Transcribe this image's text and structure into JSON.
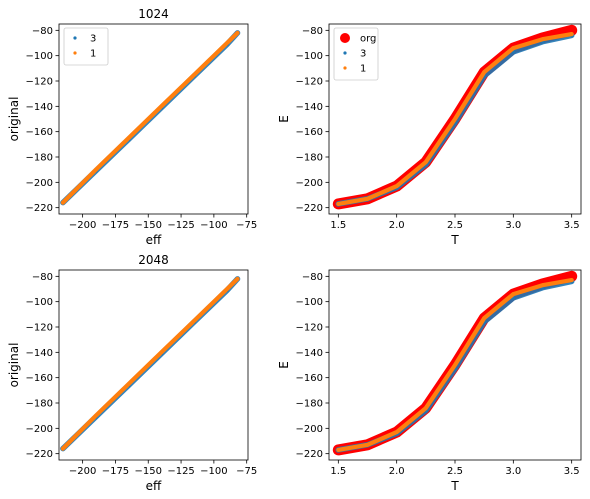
{
  "chart_data": [
    {
      "type": "scatter",
      "title": "1024",
      "xlabel": "eff",
      "ylabel": "original",
      "xlim": [
        -218,
        -74
      ],
      "ylim": [
        -225,
        -75
      ],
      "xticks": [
        -200,
        -175,
        -150,
        -125,
        -100,
        -75
      ],
      "xtick_labels": [
        "−200",
        "−175",
        "−150",
        "−125",
        "−100",
        "−75"
      ],
      "yticks": [
        -220,
        -200,
        -180,
        -160,
        -140,
        -120,
        -100,
        -80
      ],
      "ytick_labels": [
        "−220",
        "−200",
        "−180",
        "−160",
        "−140",
        "−120",
        "−100",
        "−80"
      ],
      "legend": "top-left",
      "series": [
        {
          "name": "3",
          "color": "#1f77b4",
          "x": [
            -215,
            -190,
            -165,
            -140,
            -115,
            -90,
            -82
          ],
          "y": [
            -216,
            -191,
            -166,
            -141,
            -116,
            -91,
            -82
          ]
        },
        {
          "name": "1",
          "color": "#ff7f0e",
          "x": [
            -215,
            -190,
            -165,
            -140,
            -115,
            -90,
            -82
          ],
          "y": [
            -216,
            -190,
            -165,
            -140,
            -115,
            -90,
            -82
          ]
        }
      ]
    },
    {
      "type": "scatter",
      "title": "",
      "xlabel": "T",
      "ylabel": "E",
      "xlim": [
        1.42,
        3.58
      ],
      "ylim": [
        -225,
        -75
      ],
      "xticks": [
        1.5,
        2.0,
        2.5,
        3.0,
        3.5
      ],
      "xtick_labels": [
        "1.5",
        "2.0",
        "2.5",
        "3.0",
        "3.5"
      ],
      "yticks": [
        -220,
        -200,
        -180,
        -160,
        -140,
        -120,
        -100,
        -80
      ],
      "ytick_labels": [
        "−220",
        "−200",
        "−180",
        "−160",
        "−140",
        "−120",
        "−100",
        "−80"
      ],
      "legend": "top-left",
      "series": [
        {
          "name": "org",
          "color": "#ff0000",
          "x": [
            1.5,
            1.75,
            2.0,
            2.25,
            2.5,
            2.75,
            3.0,
            3.25,
            3.5
          ],
          "y": [
            -217,
            -213,
            -203,
            -184,
            -150,
            -113,
            -94,
            -86,
            -80
          ]
        },
        {
          "name": "3",
          "color": "#1f77b4",
          "x": [
            1.5,
            1.75,
            2.0,
            2.25,
            2.5,
            2.75,
            3.0,
            3.25,
            3.5
          ],
          "y": [
            -217,
            -213,
            -204,
            -186,
            -153,
            -116,
            -97,
            -89,
            -84
          ]
        },
        {
          "name": "1",
          "color": "#ff7f0e",
          "x": [
            1.5,
            1.75,
            2.0,
            2.25,
            2.5,
            2.75,
            3.0,
            3.25,
            3.5
          ],
          "y": [
            -217,
            -213,
            -203,
            -184,
            -150,
            -113,
            -94,
            -87,
            -83
          ]
        }
      ]
    },
    {
      "type": "scatter",
      "title": "2048",
      "xlabel": "eff",
      "ylabel": "original",
      "xlim": [
        -218,
        -74
      ],
      "ylim": [
        -225,
        -75
      ],
      "xticks": [
        -200,
        -175,
        -150,
        -125,
        -100,
        -75
      ],
      "xtick_labels": [
        "−200",
        "−175",
        "−150",
        "−125",
        "−100",
        "−75"
      ],
      "yticks": [
        -220,
        -200,
        -180,
        -160,
        -140,
        -120,
        -100,
        -80
      ],
      "ytick_labels": [
        "−220",
        "−200",
        "−180",
        "−160",
        "−140",
        "−120",
        "−100",
        "−80"
      ],
      "legend": "",
      "series": [
        {
          "name": "3",
          "color": "#1f77b4",
          "x": [
            -215,
            -190,
            -165,
            -140,
            -115,
            -90,
            -82
          ],
          "y": [
            -216,
            -191,
            -166,
            -141,
            -116,
            -91,
            -82
          ]
        },
        {
          "name": "1",
          "color": "#ff7f0e",
          "x": [
            -215,
            -190,
            -165,
            -140,
            -115,
            -90,
            -82
          ],
          "y": [
            -216,
            -190,
            -165,
            -140,
            -115,
            -90,
            -82
          ]
        }
      ]
    },
    {
      "type": "scatter",
      "title": "",
      "xlabel": "T",
      "ylabel": "E",
      "xlim": [
        1.42,
        3.58
      ],
      "ylim": [
        -225,
        -75
      ],
      "xticks": [
        1.5,
        2.0,
        2.5,
        3.0,
        3.5
      ],
      "xtick_labels": [
        "1.5",
        "2.0",
        "2.5",
        "3.0",
        "3.5"
      ],
      "yticks": [
        -220,
        -200,
        -180,
        -160,
        -140,
        -120,
        -100,
        -80
      ],
      "ytick_labels": [
        "−220",
        "−200",
        "−180",
        "−160",
        "−140",
        "−120",
        "−100",
        "−80"
      ],
      "legend": "",
      "series": [
        {
          "name": "org",
          "color": "#ff0000",
          "x": [
            1.5,
            1.75,
            2.0,
            2.25,
            2.5,
            2.75,
            3.0,
            3.25,
            3.5
          ],
          "y": [
            -217,
            -213,
            -203,
            -184,
            -150,
            -113,
            -94,
            -86,
            -80
          ]
        },
        {
          "name": "3",
          "color": "#1f77b4",
          "x": [
            1.5,
            1.75,
            2.0,
            2.25,
            2.5,
            2.75,
            3.0,
            3.25,
            3.5
          ],
          "y": [
            -217,
            -213,
            -204,
            -186,
            -153,
            -116,
            -97,
            -89,
            -84
          ]
        },
        {
          "name": "1",
          "color": "#ff7f0e",
          "x": [
            1.5,
            1.75,
            2.0,
            2.25,
            2.5,
            2.75,
            3.0,
            3.25,
            3.5
          ],
          "y": [
            -217,
            -213,
            -203,
            -184,
            -150,
            -113,
            -94,
            -87,
            -83
          ]
        }
      ]
    }
  ]
}
